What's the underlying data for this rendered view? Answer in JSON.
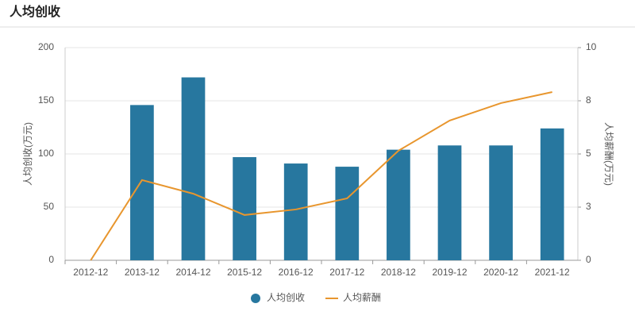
{
  "chart_data": {
    "type": "bar_line",
    "title": "人均创收",
    "ylabel": "人均创收(万元)",
    "y2label": "人均薪酬(万元)",
    "categories": [
      "2012-12",
      "2013-12",
      "2014-12",
      "2015-12",
      "2016-12",
      "2017-12",
      "2018-12",
      "2019-12",
      "2020-12",
      "2021-12"
    ],
    "series": [
      {
        "name": "人均创收",
        "type": "bar",
        "color": "#27779f",
        "values": [
          null,
          146,
          172,
          97,
          91,
          88,
          104,
          108,
          108,
          124
        ]
      },
      {
        "name": "人均薪酬",
        "type": "line",
        "axis": "y2",
        "color": "#e8962e",
        "values": [
          0,
          3.77,
          3.13,
          2.13,
          2.39,
          2.91,
          5.15,
          6.57,
          7.39,
          7.91
        ]
      }
    ],
    "ylim": [
      0,
      200
    ],
    "yticks": [
      0,
      50,
      100,
      150,
      200
    ],
    "y2lim": [
      0,
      10
    ],
    "y2ticks": [
      0,
      {
        "value": 2.5,
        "label": "3"
      },
      5,
      {
        "value": 7.5,
        "label": "8"
      },
      10
    ],
    "grid": true
  }
}
